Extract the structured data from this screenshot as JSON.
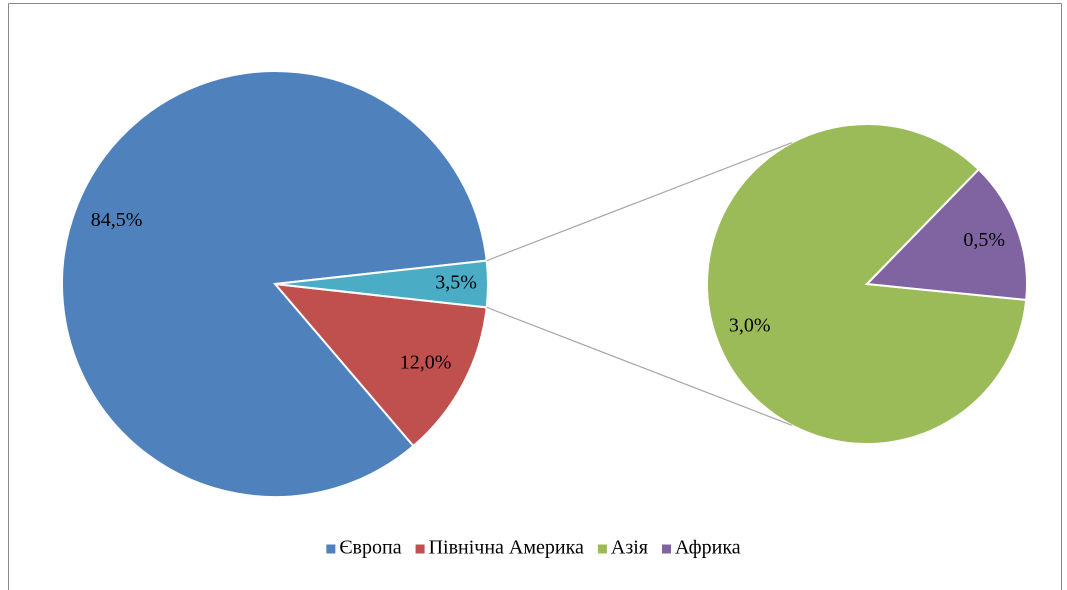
{
  "chart_data": {
    "type": "pie_of_pie",
    "categories": [
      "Європа",
      "Північна Америка",
      "Азія",
      "Африка"
    ],
    "values": [
      84.5,
      12.0,
      3.0,
      0.5
    ],
    "value_labels": [
      "84,5%",
      "12,0%",
      "3,0%",
      "0,5%"
    ],
    "colors": [
      "#4f81bd",
      "#c0504d",
      "#9bbb59",
      "#8064a2"
    ],
    "other": {
      "value": 3.5,
      "value_label": "3,5%",
      "color": "#4bacc6"
    },
    "second_plot_values": 2,
    "legend": "bottom"
  }
}
